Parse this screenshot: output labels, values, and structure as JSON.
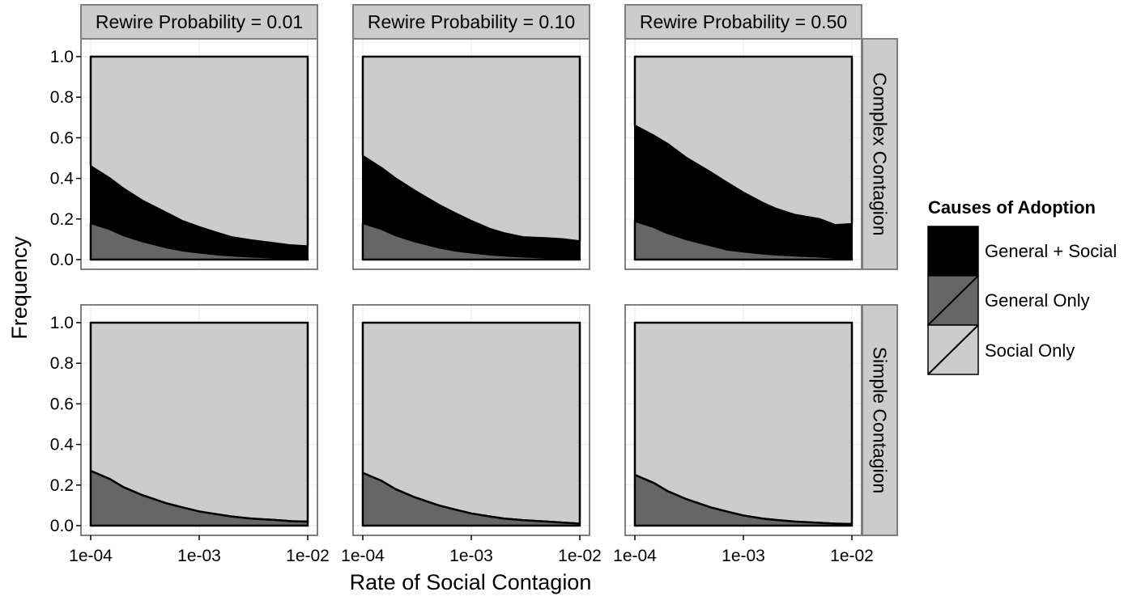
{
  "chart_data": {
    "type": "area",
    "stacked": true,
    "xscale": "log",
    "x_ticks": [
      {
        "value": 0.0001,
        "label": "1e-04"
      },
      {
        "value": 0.001,
        "label": "1e-03"
      },
      {
        "value": 0.01,
        "label": "1e-02"
      }
    ],
    "y_ticks": [
      {
        "value": 0.0,
        "label": "0.0"
      },
      {
        "value": 0.2,
        "label": "0.2"
      },
      {
        "value": 0.4,
        "label": "0.4"
      },
      {
        "value": 0.6,
        "label": "0.6"
      },
      {
        "value": 0.8,
        "label": "0.8"
      },
      {
        "value": 1.0,
        "label": "1.0"
      }
    ],
    "xlim": [
      0.0001,
      0.01
    ],
    "ylim": [
      0,
      1
    ],
    "xlabel": "Rate of Social Contagion",
    "ylabel": "Frequency",
    "grid": true,
    "column_facets": [
      "Rewire Probability = 0.01",
      "Rewire Probability = 0.10",
      "Rewire Probability = 0.50"
    ],
    "row_facets": [
      "Complex Contagion",
      "Simple Contagion"
    ],
    "legend": {
      "title": "Causes of Adoption",
      "placement": "right",
      "entries": [
        {
          "label": "General + Social",
          "color": "#000000"
        },
        {
          "label": "General Only",
          "color": "#666666"
        },
        {
          "label": "Social Only",
          "color": "#cccccc"
        }
      ]
    },
    "x": [
      0.0001,
      0.00015,
      0.0002,
      0.0003,
      0.0005,
      0.0007,
      0.001,
      0.0015,
      0.002,
      0.003,
      0.005,
      0.007,
      0.01
    ],
    "panels": [
      {
        "row": 0,
        "col": 0,
        "general_only": [
          0.18,
          0.15,
          0.12,
          0.09,
          0.06,
          0.045,
          0.035,
          0.025,
          0.02,
          0.015,
          0.01,
          0.007,
          0.005
        ],
        "general_plus_social_top": [
          0.46,
          0.4,
          0.35,
          0.29,
          0.23,
          0.19,
          0.16,
          0.13,
          0.11,
          0.095,
          0.08,
          0.07,
          0.065
        ]
      },
      {
        "row": 0,
        "col": 1,
        "general_only": [
          0.18,
          0.15,
          0.12,
          0.09,
          0.06,
          0.045,
          0.035,
          0.025,
          0.02,
          0.015,
          0.01,
          0.007,
          0.005
        ],
        "general_plus_social_top": [
          0.51,
          0.45,
          0.4,
          0.34,
          0.27,
          0.23,
          0.19,
          0.15,
          0.13,
          0.11,
          0.105,
          0.1,
          0.09
        ]
      },
      {
        "row": 0,
        "col": 2,
        "general_only": [
          0.19,
          0.16,
          0.13,
          0.1,
          0.07,
          0.05,
          0.04,
          0.03,
          0.025,
          0.02,
          0.015,
          0.01,
          0.007
        ],
        "general_plus_social_top": [
          0.66,
          0.61,
          0.57,
          0.5,
          0.43,
          0.38,
          0.33,
          0.28,
          0.25,
          0.22,
          0.2,
          0.17,
          0.175
        ]
      },
      {
        "row": 1,
        "col": 0,
        "general_only": [
          0.27,
          0.23,
          0.19,
          0.15,
          0.11,
          0.09,
          0.07,
          0.055,
          0.045,
          0.035,
          0.028,
          0.022,
          0.02
        ],
        "general_plus_social_top": [
          0.27,
          0.23,
          0.19,
          0.15,
          0.11,
          0.09,
          0.07,
          0.055,
          0.045,
          0.035,
          0.028,
          0.022,
          0.02
        ]
      },
      {
        "row": 1,
        "col": 1,
        "general_only": [
          0.26,
          0.22,
          0.18,
          0.14,
          0.1,
          0.08,
          0.06,
          0.045,
          0.035,
          0.027,
          0.02,
          0.015,
          0.01
        ],
        "general_plus_social_top": [
          0.26,
          0.22,
          0.18,
          0.14,
          0.1,
          0.08,
          0.06,
          0.045,
          0.035,
          0.027,
          0.02,
          0.015,
          0.01
        ]
      },
      {
        "row": 1,
        "col": 2,
        "general_only": [
          0.25,
          0.21,
          0.17,
          0.13,
          0.09,
          0.07,
          0.05,
          0.035,
          0.028,
          0.02,
          0.014,
          0.01,
          0.008
        ],
        "general_plus_social_top": [
          0.25,
          0.21,
          0.17,
          0.13,
          0.09,
          0.07,
          0.05,
          0.035,
          0.028,
          0.02,
          0.014,
          0.01,
          0.008
        ]
      }
    ]
  }
}
